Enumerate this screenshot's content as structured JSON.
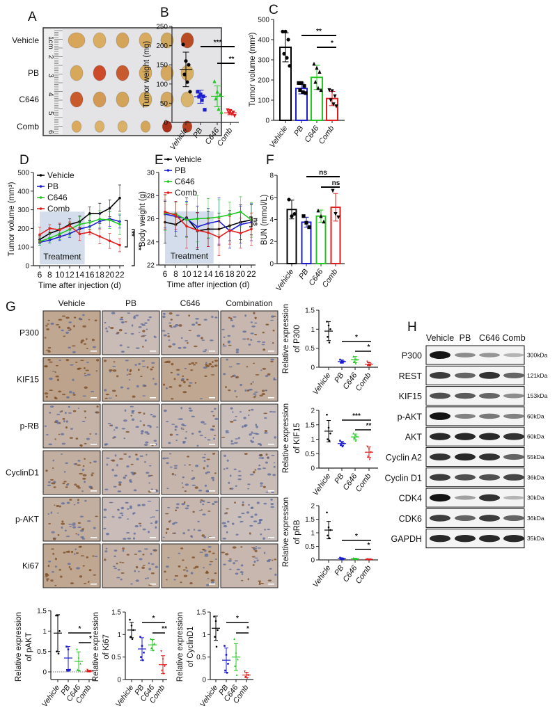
{
  "colors": {
    "Vehicle": "#000000",
    "PB": "#1c1cd0",
    "C646": "#22c822",
    "Comb": "#e01e1e"
  },
  "panel_letters": {
    "A": "A",
    "B": "B",
    "C": "C",
    "D": "D",
    "E": "E",
    "F": "F",
    "G": "G",
    "H": "H"
  },
  "panel_a": {
    "row_labels": [
      "Vehicle",
      "PB",
      "C646",
      "Comb"
    ],
    "ruler_labels": [
      "1cm",
      "2",
      "3",
      "4",
      "5",
      "6"
    ],
    "tumor_colors": [
      [
        "#d8a65a",
        "#d9ae62",
        "#d4a45a",
        "#d8ab60",
        "#cfa85e",
        "#b84a24"
      ],
      [
        "#d8a85a",
        "#cc4a2a",
        "#c85a30",
        "#d6aa5c",
        "#d4a85e",
        "#d6ae64"
      ],
      [
        "#c85a2c",
        "#d29a54",
        "#d2a45a",
        "#d4aa5c",
        "#d2a862",
        "#d8b46c"
      ],
      [
        "#dcaa5c",
        "#dcb26a",
        "#d8b068",
        "#d4a65a",
        "#a8301c",
        "#b44020"
      ]
    ]
  },
  "chart_data": [
    {
      "id": "B",
      "type": "scatter",
      "ylabel": "Tumor weight (mg)",
      "categories": [
        "Vehicle",
        "PB",
        "C646",
        "Comb"
      ],
      "ylim": [
        0,
        250
      ],
      "yticks": [
        0,
        50,
        100,
        150,
        200,
        250
      ],
      "points": [
        [
          203,
          160,
          150,
          125,
          105,
          80
        ],
        [
          80,
          73,
          68,
          67,
          58,
          33
        ],
        [
          107,
          80,
          72,
          62,
          35,
          27
        ],
        [
          32,
          30,
          26,
          24,
          22,
          17
        ]
      ],
      "mean": [
        138,
        67,
        68,
        25
      ],
      "sd": [
        45,
        17,
        27,
        5
      ],
      "significance": [
        {
          "pair": [
            1,
            3
          ],
          "label": "***"
        },
        {
          "pair": [
            2,
            3
          ],
          "label": "**"
        }
      ]
    },
    {
      "id": "C",
      "type": "bar",
      "ylabel": "Tumor volume (mm³)",
      "categories": [
        "Vehicle",
        "PB",
        "C646",
        "Comb"
      ],
      "ylim": [
        0,
        500
      ],
      "yticks": [
        0,
        100,
        200,
        300,
        400,
        500
      ],
      "points": [
        [
          440,
          440,
          400,
          330,
          310,
          270
        ],
        [
          185,
          185,
          170,
          150,
          140,
          135
        ],
        [
          280,
          260,
          240,
          190,
          160,
          150
        ],
        [
          150,
          145,
          120,
          100,
          80,
          70
        ]
      ],
      "mean": [
        362,
        158,
        213,
        108
      ],
      "sd": [
        72,
        27,
        60,
        35
      ],
      "significance": [
        {
          "pair": [
            1,
            3
          ],
          "label": "**"
        },
        {
          "pair": [
            2,
            3
          ],
          "label": "*"
        }
      ]
    },
    {
      "id": "D",
      "type": "line",
      "ylabel": "Tumor volume (mm³)",
      "xlabel": "Time after injection (d)",
      "x": [
        6,
        8,
        10,
        12,
        14,
        16,
        18,
        20,
        22
      ],
      "ylim": [
        0,
        500
      ],
      "yticks": [
        0,
        100,
        200,
        300,
        400,
        500
      ],
      "shaded_label": "Treatment",
      "shaded_range": [
        6,
        15
      ],
      "series": [
        {
          "name": "Vehicle",
          "values": [
            140,
            173,
            193,
            221,
            237,
            280,
            280,
            308,
            363
          ],
          "err": [
            20,
            30,
            30,
            30,
            30,
            35,
            55,
            45,
            70
          ]
        },
        {
          "name": "PB",
          "values": [
            125,
            137,
            155,
            172,
            197,
            210,
            238,
            251,
            237
          ],
          "err": [
            15,
            15,
            20,
            20,
            25,
            30,
            40,
            40,
            35
          ]
        },
        {
          "name": "C646",
          "values": [
            130,
            148,
            170,
            195,
            222,
            232,
            250,
            245,
            222
          ],
          "err": [
            20,
            25,
            30,
            35,
            40,
            40,
            45,
            45,
            55
          ]
        },
        {
          "name": "Comb",
          "values": [
            167,
            200,
            193,
            215,
            170,
            180,
            157,
            133,
            110
          ],
          "err": [
            40,
            20,
            35,
            20,
            35,
            15,
            40,
            40,
            35
          ]
        }
      ],
      "significance": [
        {
          "label": "**"
        },
        {
          "label": "**"
        }
      ]
    },
    {
      "id": "E",
      "type": "line",
      "ylabel": "Body weight (g)",
      "xlabel": "Time after injection (d)",
      "x": [
        6,
        8,
        10,
        12,
        14,
        16,
        18,
        20,
        22
      ],
      "ylim": [
        22,
        30
      ],
      "yticks": [
        22,
        24,
        26,
        28,
        30
      ],
      "shaded_label": "Treatment",
      "shaded_range": [
        6,
        15
      ],
      "series": [
        {
          "name": "Vehicle",
          "values": [
            25.7,
            25.5,
            26.1,
            24.95,
            25.1,
            25.1,
            25.4,
            25.7,
            25.9
          ],
          "err": [
            1.8,
            1.0,
            1.7,
            1.6,
            1.5,
            1.4,
            1.3,
            1.5,
            1.3
          ]
        },
        {
          "name": "PB",
          "values": [
            26.4,
            26.2,
            26.0,
            25.3,
            25.6,
            25.8,
            24.95,
            25.5,
            25.7
          ],
          "err": [
            1.2,
            1.3,
            1.5,
            1.8,
            1.3,
            2.0,
            1.5,
            1.6,
            1.6
          ]
        },
        {
          "name": "C646",
          "values": [
            26.5,
            26.4,
            25.9,
            26.0,
            26.05,
            26.15,
            26.35,
            26.6,
            25.9
          ],
          "err": [
            1.5,
            1.0,
            1.5,
            2.0,
            1.7,
            1.5,
            1.1,
            1.3,
            1.5
          ]
        },
        {
          "name": "Comb",
          "values": [
            26.6,
            26.3,
            25.35,
            25.0,
            24.8,
            24.4,
            25.0,
            24.75,
            25.1
          ],
          "err": [
            1.5,
            1.2,
            1.9,
            1.5,
            1.2,
            1.6,
            1.2,
            1.3,
            1.4
          ]
        }
      ],
      "significance": [
        {
          "label": "ns"
        }
      ]
    },
    {
      "id": "F",
      "type": "bar",
      "ylabel": "BUN (mmol/L)",
      "categories": [
        "Vehicle",
        "PB",
        "C646",
        "Comb"
      ],
      "ylim": [
        0,
        8
      ],
      "yticks": [
        0,
        2,
        4,
        6,
        8
      ],
      "points": [
        [
          5.8,
          4.3,
          4.5
        ],
        [
          4.3,
          3.7,
          3.3
        ],
        [
          4.8,
          4.3,
          3.8
        ],
        [
          6.6,
          4.5,
          4.2
        ]
      ],
      "mean": [
        4.9,
        3.75,
        4.3,
        5.1
      ],
      "sd": [
        0.85,
        0.45,
        0.55,
        1.25
      ],
      "significance": [
        {
          "pair": [
            1,
            3
          ],
          "label": "ns"
        },
        {
          "pair": [
            2,
            3
          ],
          "label": "ns"
        }
      ]
    },
    {
      "id": "G_P300",
      "type": "scatter",
      "ylabel": [
        "Relative expression",
        "of P300"
      ],
      "categories": [
        "Vehicle",
        "PB",
        "C646",
        "Comb"
      ],
      "ylim": [
        0,
        1.5
      ],
      "yticks": [
        0.0,
        0.5,
        1.0,
        1.5
      ],
      "points": [
        [
          1.2,
          1.1,
          1.0,
          0.8,
          0.65
        ],
        [
          0.2,
          0.18,
          0.15,
          0.12,
          0.12
        ],
        [
          0.28,
          0.22,
          0.2,
          0.15,
          0.1
        ],
        [
          0.15,
          0.12,
          0.08,
          0.05,
          0.05
        ]
      ],
      "mean": [
        0.95,
        0.15,
        0.2,
        0.08
      ],
      "sd": [
        0.25,
        0.04,
        0.08,
        0.04
      ],
      "significance": [
        {
          "pair": [
            1,
            3
          ],
          "label": "*"
        },
        {
          "pair": [
            2,
            3
          ],
          "label": "*"
        }
      ]
    },
    {
      "id": "G_KIF15",
      "type": "scatter",
      "ylabel": [
        "Relative expression",
        "of KIF15"
      ],
      "categories": [
        "Vehicle",
        "PB",
        "C646",
        "Comb"
      ],
      "ylim": [
        0,
        2
      ],
      "yticks": [
        0.0,
        0.5,
        1.0,
        1.5,
        2.0
      ],
      "points": [
        [
          1.85,
          1.4,
          1.2,
          1.0,
          0.95
        ],
        [
          0.95,
          0.9,
          0.85,
          0.8,
          0.75
        ],
        [
          1.2,
          1.15,
          1.1,
          1.05,
          0.95
        ],
        [
          0.75,
          0.65,
          0.55,
          0.4,
          0.3
        ]
      ],
      "mean": [
        1.28,
        0.85,
        1.08,
        0.55
      ],
      "sd": [
        0.37,
        0.07,
        0.1,
        0.18
      ],
      "significance": [
        {
          "pair": [
            1,
            3
          ],
          "label": "***"
        },
        {
          "pair": [
            2,
            3
          ],
          "label": "**"
        }
      ]
    },
    {
      "id": "G_pRB",
      "type": "scatter",
      "ylabel": [
        "Relative expression",
        "of pRB"
      ],
      "categories": [
        "Vehicle",
        "PB",
        "C646",
        "Comb"
      ],
      "ylim": [
        0,
        2
      ],
      "yticks": [
        0.0,
        0.5,
        1.0,
        1.5,
        2.0
      ],
      "zero_line": true,
      "points": [
        [
          1.75,
          1.2,
          1.1,
          0.9,
          0.8
        ],
        [
          0.08,
          0.06,
          0.04,
          0.03,
          0.02
        ],
        [
          0.06,
          0.05,
          0.04,
          0.03,
          0.02
        ],
        [
          0.03,
          0.02,
          0.02,
          0.01,
          0.01
        ]
      ],
      "mean": [
        1.1,
        0.05,
        0.04,
        0.02
      ],
      "sd": [
        0.32,
        0.02,
        0.02,
        0.01
      ],
      "significance": [
        {
          "pair": [
            1,
            3
          ],
          "label": "*"
        },
        {
          "pair": [
            2,
            3
          ],
          "label": "*"
        }
      ]
    },
    {
      "id": "G_pAKT",
      "type": "scatter",
      "ylabel": [
        "Relative expression",
        "of pAKT"
      ],
      "categories": [
        "Vehicle",
        "PB",
        "C646",
        "Comb"
      ],
      "ylim": [
        -0.2,
        1.5
      ],
      "yticks": [
        0.0,
        0.5,
        1.0,
        1.5
      ],
      "zero_line": true,
      "points": [
        [
          1.38,
          1.38,
          1.0,
          0.5,
          0.45
        ],
        [
          0.62,
          0.55,
          0.05,
          0.03,
          0.03
        ],
        [
          0.55,
          0.35,
          0.2,
          0.05,
          0.03
        ],
        [
          0.05,
          0.02,
          0.02,
          0.01,
          0.01
        ]
      ],
      "mean": [
        0.95,
        0.34,
        0.26,
        0.02
      ],
      "sd": [
        0.45,
        0.28,
        0.23,
        0.02
      ],
      "significance": [
        {
          "pair": [
            1,
            3
          ],
          "label": "*"
        },
        {
          "pair": [
            2,
            3
          ],
          "label": "*"
        }
      ]
    },
    {
      "id": "G_Ki67",
      "type": "scatter",
      "ylabel": [
        "Relative expression",
        "of Ki67"
      ],
      "categories": [
        "Vehicle",
        "PB",
        "C646",
        "Comb"
      ],
      "ylim": [
        0,
        1.5
      ],
      "yticks": [
        0.0,
        0.5,
        1.0,
        1.5
      ],
      "points": [
        [
          1.33,
          1.2,
          1.1,
          0.95,
          0.9
        ],
        [
          0.95,
          0.75,
          0.6,
          0.5,
          0.43
        ],
        [
          0.9,
          0.88,
          0.8,
          0.7,
          0.65
        ],
        [
          0.63,
          0.45,
          0.3,
          0.2,
          0.13
        ]
      ],
      "mean": [
        1.1,
        0.68,
        0.77,
        0.33
      ],
      "sd": [
        0.17,
        0.25,
        0.12,
        0.2
      ],
      "significance": [
        {
          "pair": [
            1,
            3
          ],
          "label": "*"
        },
        {
          "pair": [
            2,
            3
          ],
          "label": "**"
        }
      ]
    },
    {
      "id": "G_CyclinD1",
      "type": "scatter",
      "ylabel": [
        "Relative expression",
        "of CyclinD1"
      ],
      "categories": [
        "Vehicle",
        "PB",
        "C646",
        "Comb"
      ],
      "ylim": [
        0,
        1.5
      ],
      "yticks": [
        0.0,
        0.5,
        1.0,
        1.5
      ],
      "points": [
        [
          1.4,
          1.3,
          1.1,
          0.95,
          0.73
        ],
        [
          0.75,
          0.55,
          0.35,
          0.2,
          0.15
        ],
        [
          0.9,
          0.6,
          0.45,
          0.3,
          0.1
        ],
        [
          0.18,
          0.15,
          0.1,
          0.06,
          0.03
        ]
      ],
      "mean": [
        1.14,
        0.43,
        0.5,
        0.1
      ],
      "sd": [
        0.27,
        0.27,
        0.3,
        0.06
      ],
      "significance": [
        {
          "pair": [
            1,
            3
          ],
          "label": "*"
        },
        {
          "pair": [
            2,
            3
          ],
          "label": "*"
        }
      ]
    }
  ],
  "panel_g": {
    "columns": [
      "Vehicle",
      "PB",
      "C646",
      "Combination"
    ],
    "rows": [
      "P300",
      "KIF15",
      "p-RB",
      "CyclinD1",
      "p-AKT",
      "Ki67"
    ],
    "stain_intensity": [
      [
        0.7,
        0.2,
        0.25,
        0.3
      ],
      [
        0.8,
        0.6,
        0.7,
        0.5
      ],
      [
        0.4,
        0.2,
        0.25,
        0.1
      ],
      [
        0.5,
        0.3,
        0.35,
        0.2
      ],
      [
        0.5,
        0.15,
        0.3,
        0.1
      ],
      [
        0.7,
        0.4,
        0.6,
        0.3
      ]
    ]
  },
  "panel_h": {
    "columns": [
      "Vehicle",
      "PB",
      "C646",
      "Comb"
    ],
    "blots": [
      {
        "name": "P300",
        "kda": "300kDa",
        "bands": [
          1.0,
          0.4,
          0.35,
          0.2
        ]
      },
      {
        "name": "REST",
        "kda": "121kDa",
        "bands": [
          0.8,
          0.6,
          0.85,
          0.6
        ]
      },
      {
        "name": "KIF15",
        "kda": "153kDa",
        "bands": [
          0.7,
          0.65,
          0.6,
          0.4
        ]
      },
      {
        "name": "p-AKT",
        "kda": "60kDa",
        "bands": [
          1.0,
          0.45,
          0.5,
          0.45
        ]
      },
      {
        "name": "AKT",
        "kda": "60kDa",
        "bands": [
          0.9,
          0.9,
          0.9,
          0.85
        ]
      },
      {
        "name": "Cyclin A2",
        "kda": "55kDa",
        "bands": [
          0.85,
          0.9,
          0.85,
          0.6
        ]
      },
      {
        "name": "Cyclin D1",
        "kda": "36kDa",
        "bands": [
          0.8,
          0.7,
          0.7,
          0.75
        ]
      },
      {
        "name": "CDK4",
        "kda": "30kDa",
        "bands": [
          1.0,
          0.3,
          0.85,
          0.2
        ]
      },
      {
        "name": "CDK6",
        "kda": "36kDa",
        "bands": [
          0.8,
          0.6,
          0.8,
          0.6
        ]
      },
      {
        "name": "GAPDH",
        "kda": "35kDa",
        "bands": [
          0.9,
          0.9,
          0.9,
          0.9
        ]
      }
    ]
  }
}
